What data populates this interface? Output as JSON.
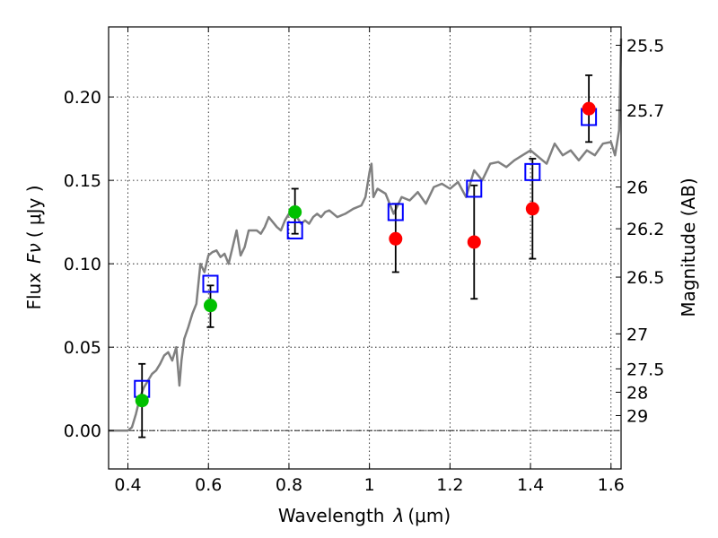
{
  "chart_data": {
    "type": "scatter",
    "title": "",
    "xlabel": "Wavelength",
    "xlabel_symbol": "λ",
    "xlabel_unit": "(μm)",
    "ylabel": "Flux",
    "ylabel_symbol": "Fν",
    "ylabel_unit": "( μJy )",
    "y2label": "Magnitude (AB)",
    "xlim": [
      0.352,
      1.625
    ],
    "ylim": [
      -0.023,
      0.242
    ],
    "grid": true,
    "x_ticks": [
      0.4,
      0.6,
      0.8,
      1.0,
      1.2,
      1.4,
      1.6
    ],
    "x_tick_labels": [
      "0.4",
      "0.6",
      "0.8",
      "1",
      "1.2",
      "1.4",
      "1.6"
    ],
    "y_ticks": [
      0.0,
      0.05,
      0.1,
      0.15,
      0.2
    ],
    "y_tick_labels": [
      "0.00",
      "0.05",
      "0.10",
      "0.15",
      "0.20"
    ],
    "y2_ticks": [
      {
        "label": "25.5",
        "flux": 0.231
      },
      {
        "label": "25.7",
        "flux": 0.192
      },
      {
        "label": "26",
        "flux": 0.146
      },
      {
        "label": "26.2",
        "flux": 0.121
      },
      {
        "label": "26.5",
        "flux": 0.092
      },
      {
        "label": "27",
        "flux": 0.058
      },
      {
        "label": "27.5",
        "flux": 0.037
      },
      {
        "label": "28",
        "flux": 0.023
      },
      {
        "label": "29",
        "flux": 0.009
      }
    ],
    "model_sed": {
      "color": "#808080",
      "x": [
        0.352,
        0.38,
        0.4,
        0.41,
        0.42,
        0.43,
        0.44,
        0.45,
        0.46,
        0.47,
        0.48,
        0.49,
        0.5,
        0.51,
        0.52,
        0.528,
        0.533,
        0.54,
        0.55,
        0.56,
        0.57,
        0.58,
        0.59,
        0.6,
        0.61,
        0.62,
        0.63,
        0.64,
        0.65,
        0.66,
        0.67,
        0.68,
        0.69,
        0.7,
        0.71,
        0.72,
        0.73,
        0.74,
        0.75,
        0.76,
        0.77,
        0.78,
        0.79,
        0.8,
        0.81,
        0.82,
        0.83,
        0.84,
        0.85,
        0.86,
        0.87,
        0.88,
        0.89,
        0.9,
        0.92,
        0.94,
        0.96,
        0.98,
        0.99,
        1.0,
        1.005,
        1.01,
        1.02,
        1.04,
        1.06,
        1.08,
        1.1,
        1.12,
        1.14,
        1.16,
        1.18,
        1.2,
        1.22,
        1.24,
        1.26,
        1.28,
        1.3,
        1.32,
        1.34,
        1.36,
        1.38,
        1.4,
        1.42,
        1.44,
        1.46,
        1.48,
        1.5,
        1.52,
        1.54,
        1.56,
        1.58,
        1.6,
        1.61,
        1.62,
        1.625
      ],
      "y": [
        0.0,
        0.0,
        0.0,
        0.002,
        0.01,
        0.02,
        0.026,
        0.03,
        0.034,
        0.036,
        0.04,
        0.045,
        0.047,
        0.042,
        0.05,
        0.027,
        0.042,
        0.055,
        0.062,
        0.07,
        0.076,
        0.1,
        0.095,
        0.105,
        0.107,
        0.108,
        0.104,
        0.106,
        0.1,
        0.11,
        0.12,
        0.105,
        0.11,
        0.12,
        0.12,
        0.12,
        0.118,
        0.122,
        0.128,
        0.125,
        0.122,
        0.12,
        0.126,
        0.13,
        0.132,
        0.128,
        0.124,
        0.126,
        0.124,
        0.128,
        0.13,
        0.128,
        0.131,
        0.132,
        0.128,
        0.13,
        0.133,
        0.135,
        0.14,
        0.155,
        0.16,
        0.14,
        0.145,
        0.142,
        0.13,
        0.14,
        0.138,
        0.143,
        0.136,
        0.146,
        0.148,
        0.145,
        0.149,
        0.14,
        0.156,
        0.15,
        0.16,
        0.161,
        0.158,
        0.162,
        0.165,
        0.168,
        0.164,
        0.16,
        0.172,
        0.165,
        0.168,
        0.162,
        0.168,
        0.165,
        0.172,
        0.173,
        0.165,
        0.18,
        0.235
      ]
    },
    "series": [
      {
        "marker": "open-square",
        "color": "#0000ff",
        "points": [
          {
            "x": 0.435,
            "y": 0.025
          },
          {
            "x": 0.605,
            "y": 0.088
          },
          {
            "x": 0.815,
            "y": 0.12
          },
          {
            "x": 1.065,
            "y": 0.131
          },
          {
            "x": 1.26,
            "y": 0.145
          },
          {
            "x": 1.405,
            "y": 0.155
          },
          {
            "x": 1.545,
            "y": 0.188
          }
        ]
      },
      {
        "marker": "filled-circle",
        "color": "#00c000",
        "points": [
          {
            "x": 0.435,
            "y": 0.018,
            "err_low": 0.022,
            "err_high": 0.022
          },
          {
            "x": 0.605,
            "y": 0.075,
            "err_low": 0.013,
            "err_high": 0.012
          },
          {
            "x": 0.815,
            "y": 0.131,
            "err_low": 0.013,
            "err_high": 0.014
          }
        ]
      },
      {
        "marker": "filled-circle",
        "color": "#ff0000",
        "points": [
          {
            "x": 1.065,
            "y": 0.115,
            "err_low": 0.02,
            "err_high": 0.021
          },
          {
            "x": 1.26,
            "y": 0.113,
            "err_low": 0.034,
            "err_high": 0.034
          },
          {
            "x": 1.405,
            "y": 0.133,
            "err_low": 0.03,
            "err_high": 0.03
          },
          {
            "x": 1.545,
            "y": 0.193,
            "err_low": 0.02,
            "err_high": 0.02
          }
        ]
      }
    ],
    "zero_line": {
      "y": 0.0,
      "style": "dash-dot"
    }
  }
}
